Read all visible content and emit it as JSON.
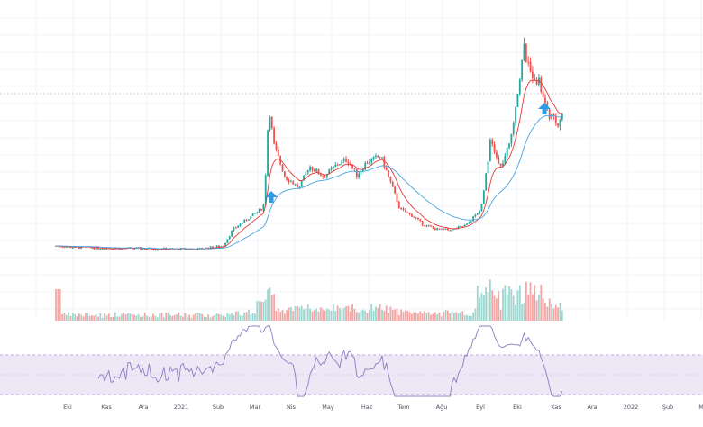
{
  "colors": {
    "up": "#26a69a",
    "down": "#ef5350",
    "up_volume": "#9fd6cf",
    "down_volume": "#f3a6a4",
    "ema_fast": "#e53935",
    "ema_slow": "#4aa3df",
    "rsi_line": "#8e7cc3",
    "rsi_band": "#ede7f6",
    "arrow": "#2e9be6",
    "grid": "#f0f3fa"
  },
  "chart_data": [
    {
      "type": "candlestick",
      "panel": "price",
      "notes_visible": false,
      "x_ticks": [
        "Eki",
        "Kas",
        "Ara",
        "2021",
        "Şub",
        "Mar",
        "Nis",
        "May",
        "Haz",
        "Tem",
        "Ağu",
        "Eyl",
        "Eki",
        "Kas",
        "Ara",
        "2022",
        "Şub",
        "M"
      ],
      "series": [
        {
          "kind": "ohlc",
          "close_path": [
            [
              0,
              0.12
            ],
            [
              2,
              0.11
            ],
            [
              6,
              0.105
            ],
            [
              9,
              0.103
            ],
            [
              12,
              0.1
            ],
            [
              15,
              0.1
            ],
            [
              17.5,
              0.12
            ],
            [
              18.5,
              0.22
            ],
            [
              21.5,
              0.35
            ],
            [
              21.8,
              0.38
            ],
            [
              22.3,
              1.0
            ],
            [
              22.8,
              0.75
            ],
            [
              24,
              0.55
            ],
            [
              25.5,
              0.48
            ],
            [
              26.5,
              0.62
            ],
            [
              28,
              0.55
            ],
            [
              29.5,
              0.63
            ],
            [
              30.5,
              0.66
            ],
            [
              31.5,
              0.56
            ],
            [
              32.5,
              0.64
            ],
            [
              34,
              0.68
            ],
            [
              35,
              0.52
            ],
            [
              36,
              0.35
            ],
            [
              37.5,
              0.3
            ],
            [
              38.5,
              0.25
            ],
            [
              40,
              0.22
            ],
            [
              41.5,
              0.22
            ],
            [
              43,
              0.25
            ],
            [
              44.5,
              0.35
            ],
            [
              45.5,
              0.78
            ],
            [
              46.5,
              0.6
            ],
            [
              47.5,
              0.75
            ],
            [
              48.5,
              1.15
            ],
            [
              49,
              1.35
            ],
            [
              49.5,
              1.22
            ],
            [
              50.5,
              1.15
            ],
            [
              51.5,
              0.95
            ],
            [
              52.5,
              0.88
            ],
            [
              53,
              0.95
            ]
          ]
        },
        {
          "name": "",
          "kind": "ema_fast"
        },
        {
          "name": "",
          "kind": "ema_slow"
        }
      ],
      "volume": "bars along bottom of price panel",
      "annotations": [
        "up-arrow",
        "up-arrow"
      ]
    },
    {
      "type": "line",
      "panel": "oscillator",
      "band": [
        30,
        70
      ],
      "ylim": [
        0,
        100
      ]
    }
  ]
}
